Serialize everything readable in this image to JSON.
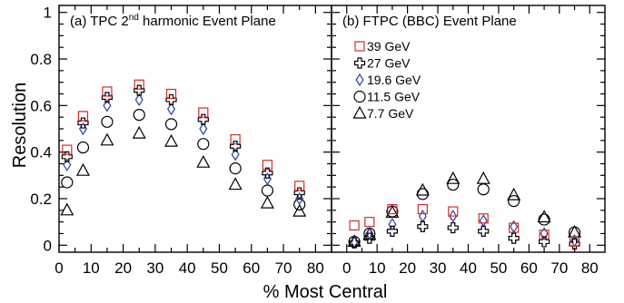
{
  "figure": {
    "ylabel": "Resolution",
    "xlabel": "% Most Central"
  },
  "series_styles": {
    "39 GeV": {
      "marker": "square",
      "color": "#d42a2a"
    },
    "27 GeV": {
      "marker": "cross",
      "color": "#000000"
    },
    "19.6 GeV": {
      "marker": "diamond",
      "color": "#2b3f9a"
    },
    "11.5 GeV": {
      "marker": "circle",
      "color": "#000000"
    },
    "7.7 GeV": {
      "marker": "triangle",
      "color": "#000000"
    }
  },
  "chart_data": [
    {
      "type": "scatter",
      "panel": "a",
      "title": "(a) TPC 2",
      "title_superscript": "nd",
      "title_suffix": " harmonic Event Plane",
      "xlim": [
        0,
        85
      ],
      "ylim": [
        -0.03,
        1.03
      ],
      "x_ticks": [
        0,
        10,
        20,
        30,
        40,
        50,
        60,
        70,
        80
      ],
      "y_ticks": [
        0,
        0.2,
        0.4,
        0.6,
        0.8,
        1
      ],
      "y_tick_labels": [
        "0",
        "0.2",
        "0.4",
        "0.6",
        "0.8",
        "1"
      ],
      "x": [
        2.5,
        7.5,
        15,
        25,
        35,
        45,
        55,
        65,
        75
      ],
      "series": [
        {
          "name": "39 GeV",
          "values": [
            0.41,
            0.555,
            0.66,
            0.69,
            0.65,
            0.57,
            0.455,
            0.345,
            0.255
          ]
        },
        {
          "name": "27 GeV",
          "values": [
            0.38,
            0.525,
            0.635,
            0.665,
            0.625,
            0.54,
            0.425,
            0.31,
            0.225
          ]
        },
        {
          "name": "19.6 GeV",
          "values": [
            0.345,
            0.5,
            0.6,
            0.625,
            0.585,
            0.5,
            0.39,
            0.285,
            0.2
          ]
        },
        {
          "name": "11.5 GeV",
          "values": [
            0.27,
            0.42,
            0.53,
            0.56,
            0.52,
            0.435,
            0.33,
            0.235,
            0.175
          ]
        },
        {
          "name": "7.7 GeV",
          "values": [
            0.15,
            0.32,
            0.45,
            0.48,
            0.445,
            0.355,
            0.26,
            0.18,
            0.145
          ]
        }
      ]
    },
    {
      "type": "scatter",
      "panel": "b",
      "title": "(b) FTPC (BBC) Event Plane",
      "xlim": [
        -5,
        85
      ],
      "ylim": [
        -0.03,
        1.03
      ],
      "x_ticks": [
        0,
        10,
        20,
        30,
        40,
        50,
        60,
        70,
        80
      ],
      "legend": [
        "39 GeV",
        "27 GeV",
        "19.6 GeV",
        "11.5 GeV",
        "7.7 GeV"
      ],
      "legend_position": "top-left",
      "x": [
        2.5,
        7.5,
        15,
        25,
        35,
        45,
        55,
        65,
        75
      ],
      "series": [
        {
          "name": "39 GeV",
          "values": [
            0.085,
            0.1,
            0.155,
            0.155,
            0.145,
            0.115,
            0.075,
            0.045,
            0.015
          ]
        },
        {
          "name": "27 GeV",
          "values": [
            0.01,
            0.03,
            0.06,
            0.08,
            0.075,
            0.06,
            0.03,
            0.015,
            0.005
          ]
        },
        {
          "name": "19.6 GeV",
          "values": [
            0.015,
            0.05,
            0.09,
            0.125,
            0.125,
            0.105,
            0.08,
            0.05,
            0.02
          ]
        },
        {
          "name": "11.5 GeV",
          "values": [
            0.015,
            0.05,
            0.145,
            0.22,
            0.26,
            0.24,
            0.19,
            0.11,
            0.055
          ]
        },
        {
          "name": "7.7 GeV",
          "values": [
            0.015,
            0.045,
            0.14,
            0.235,
            0.285,
            0.285,
            0.215,
            0.12,
            0.055
          ]
        }
      ]
    }
  ]
}
